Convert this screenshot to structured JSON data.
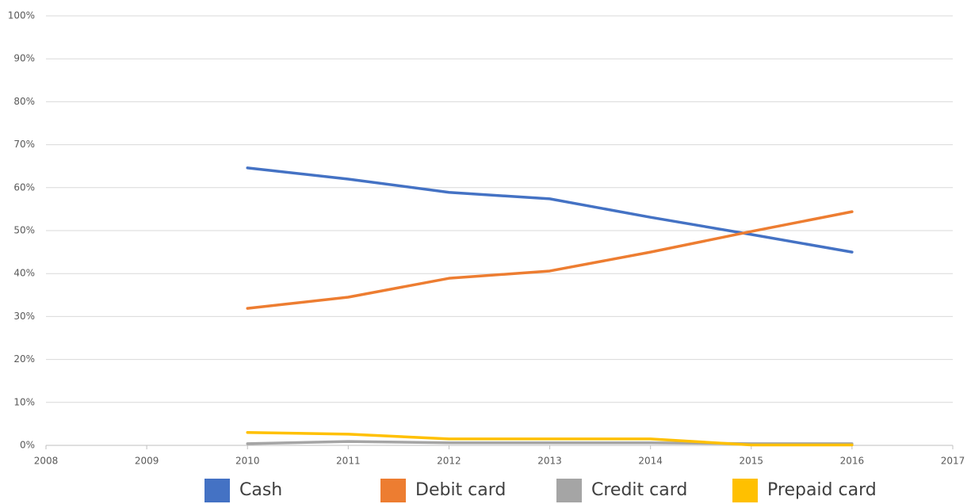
{
  "chart_data": {
    "type": "line",
    "x": [
      2010,
      2011,
      2012,
      2013,
      2014,
      2015,
      2016
    ],
    "series": [
      {
        "name": "Cash",
        "color": "#4472c4",
        "values": [
          64.6,
          62.0,
          58.9,
          57.4,
          53.1,
          49.1,
          45.0
        ]
      },
      {
        "name": "Debit card",
        "color": "#ed7d31",
        "values": [
          31.9,
          34.5,
          38.9,
          40.6,
          45.0,
          49.8,
          54.4
        ]
      },
      {
        "name": "Credit card",
        "color": "#a5a5a5",
        "values": [
          0.4,
          0.9,
          0.6,
          0.6,
          0.6,
          0.4,
          0.4
        ]
      },
      {
        "name": "Prepaid card",
        "color": "#ffc000",
        "values": [
          3.0,
          2.6,
          1.5,
          1.5,
          1.5,
          0.1,
          0.1
        ]
      }
    ],
    "xlim": [
      2008,
      2017
    ],
    "xticks": [
      2008,
      2009,
      2010,
      2011,
      2012,
      2013,
      2014,
      2015,
      2016,
      2017
    ],
    "ylim": [
      0,
      100
    ],
    "yticks": [
      {
        "value": 0,
        "label": "0%"
      },
      {
        "value": 10,
        "label": "10%"
      },
      {
        "value": 20,
        "label": "20%"
      },
      {
        "value": 30,
        "label": "30%"
      },
      {
        "value": 40,
        "label": "40%"
      },
      {
        "value": 50,
        "label": "50%"
      },
      {
        "value": 60,
        "label": "60%"
      },
      {
        "value": 70,
        "label": "70%"
      },
      {
        "value": 80,
        "label": "80%"
      },
      {
        "value": 90,
        "label": "90%"
      },
      {
        "value": 100,
        "label": "100%"
      }
    ],
    "grid": true,
    "legend": "bottom"
  }
}
